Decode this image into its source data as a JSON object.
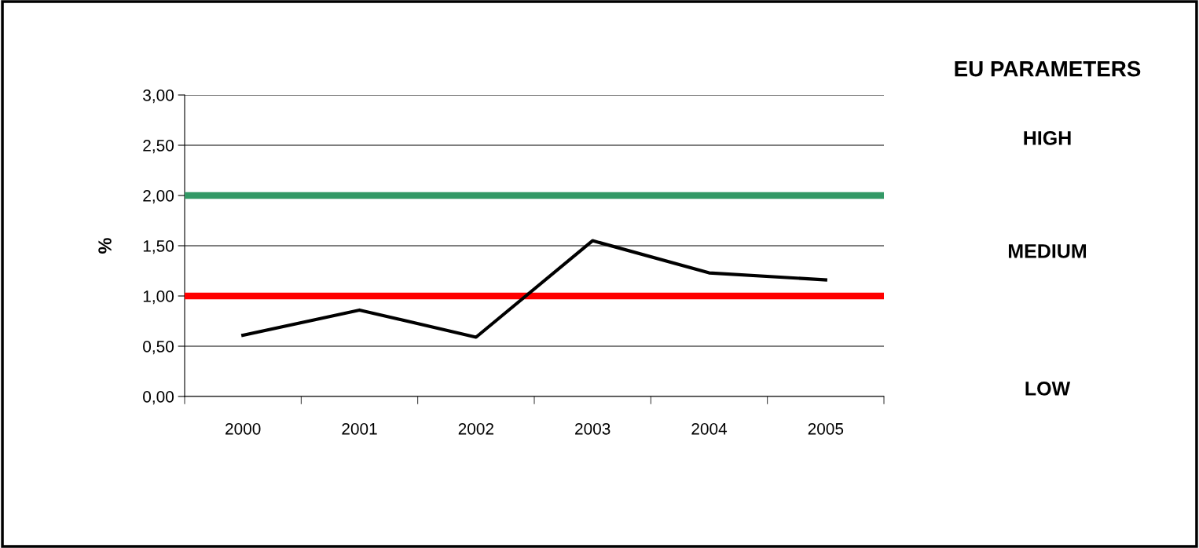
{
  "chart_data": {
    "type": "line",
    "ylabel": "%",
    "categories": [
      "2000",
      "2001",
      "2002",
      "2003",
      "2004",
      "2005"
    ],
    "series": [
      {
        "color": "#000000",
        "values": [
          0.61,
          0.86,
          0.59,
          1.55,
          1.23,
          1.16
        ]
      }
    ],
    "ylim": [
      0,
      3
    ],
    "yticks": [
      {
        "value": 0,
        "label": "0,00"
      },
      {
        "value": 0.5,
        "label": "0,50"
      },
      {
        "value": 1,
        "label": "1,00"
      },
      {
        "value": 1.5,
        "label": "1,50"
      },
      {
        "value": 2,
        "label": "2,00"
      },
      {
        "value": 2.5,
        "label": "2,50"
      },
      {
        "value": 3,
        "label": "3,00"
      }
    ],
    "grid": "y",
    "marker": "none",
    "line_style": "solid",
    "ref_lines": [
      {
        "axis": "y",
        "value": 2,
        "color": "#339966"
      },
      {
        "axis": "y",
        "value": 1,
        "color": "#ff0000"
      }
    ],
    "annotations": [
      "EU PARAMETERS",
      "HIGH",
      "MEDIUM",
      "LOW"
    ]
  }
}
